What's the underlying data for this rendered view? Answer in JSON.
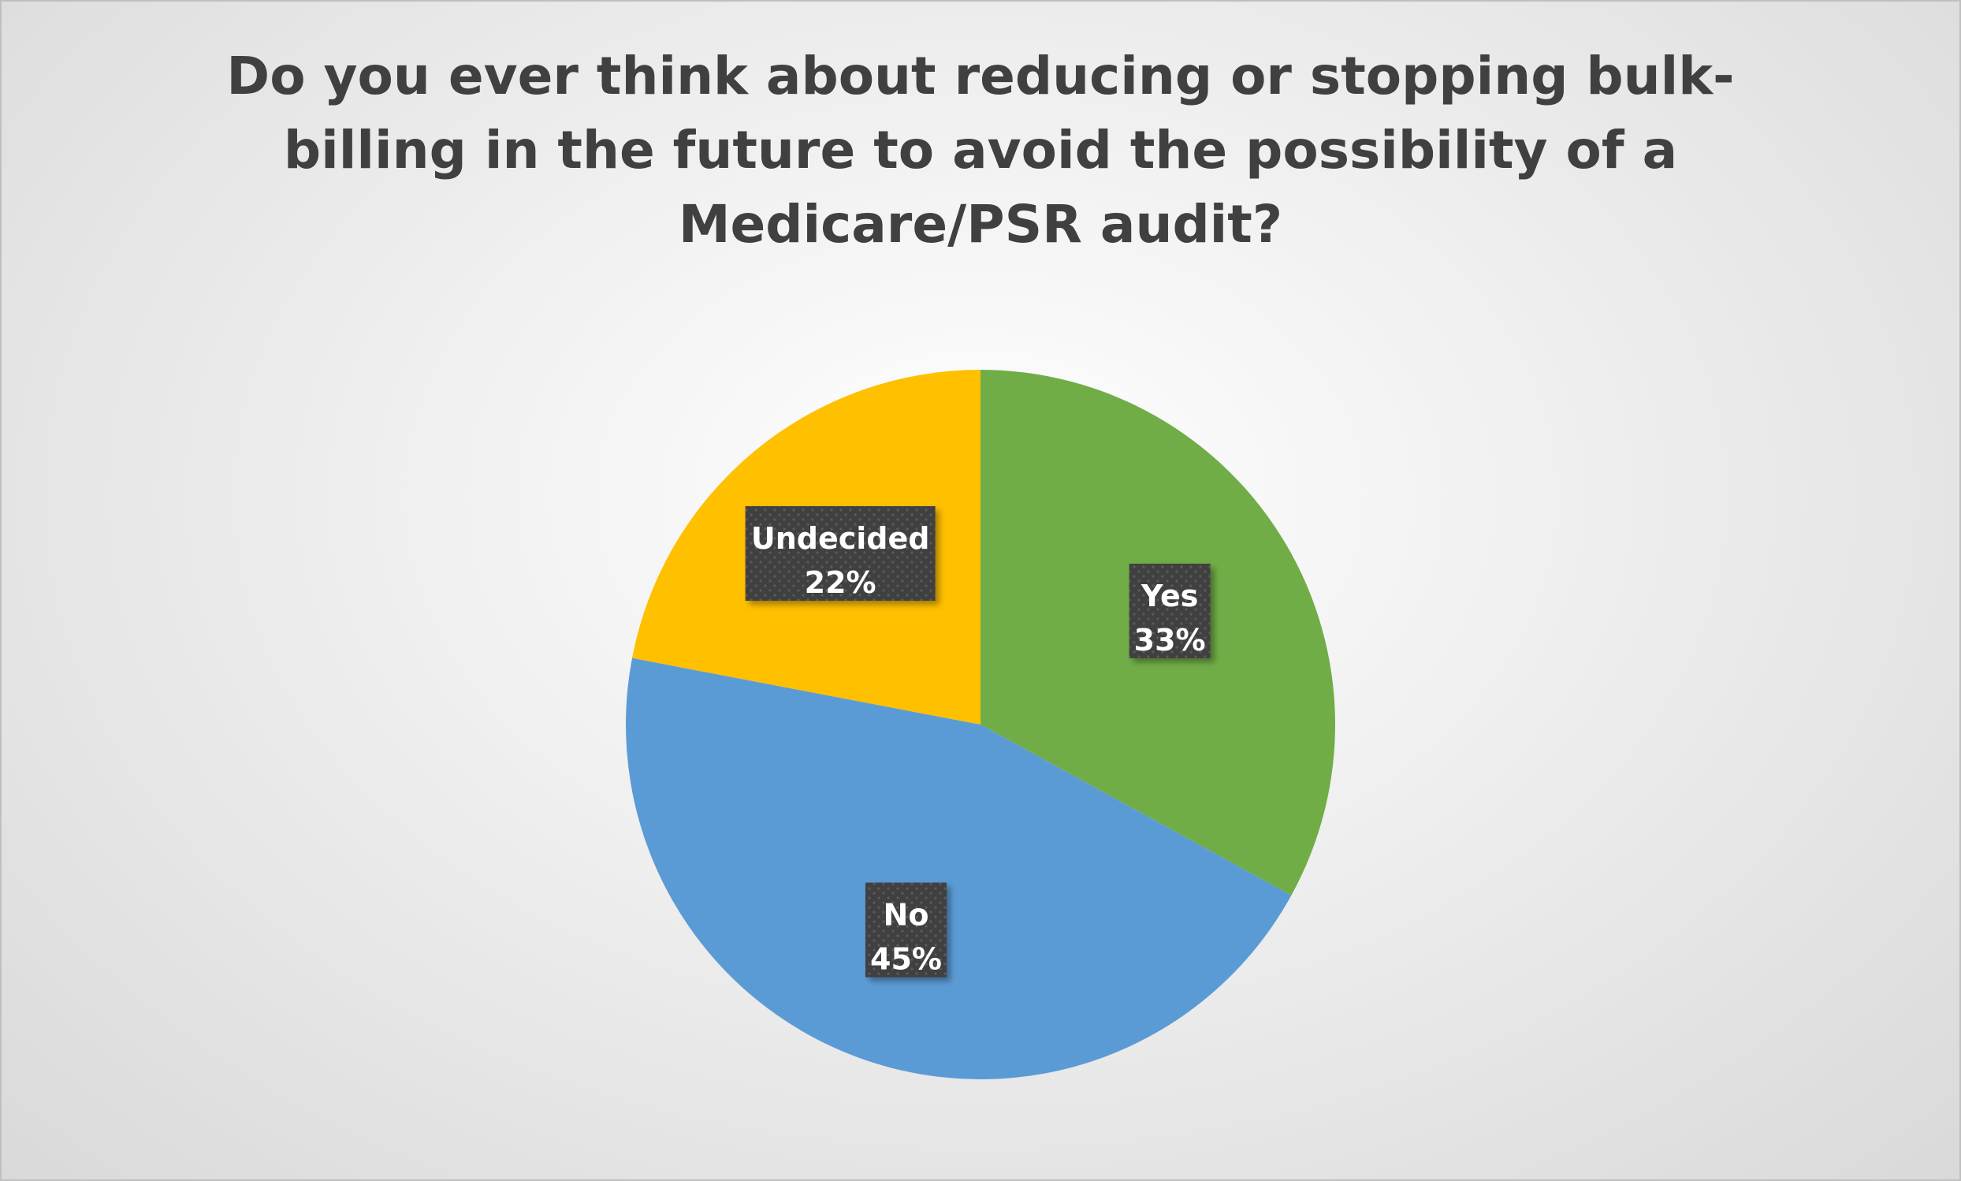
{
  "chart_data": {
    "type": "pie",
    "title": "Do you ever think about reducing or stopping bulk-billing in the future to avoid the possibility of a Medicare/PSR audit?",
    "unit": "%",
    "data_labels": true,
    "legend": "none",
    "slices": [
      {
        "label": "Yes",
        "value": 33,
        "color": "#70ad47"
      },
      {
        "label": "No",
        "value": 45,
        "color": "#5b9bd5"
      },
      {
        "label": "Undecided",
        "value": 22,
        "color": "#ffc000"
      }
    ]
  }
}
